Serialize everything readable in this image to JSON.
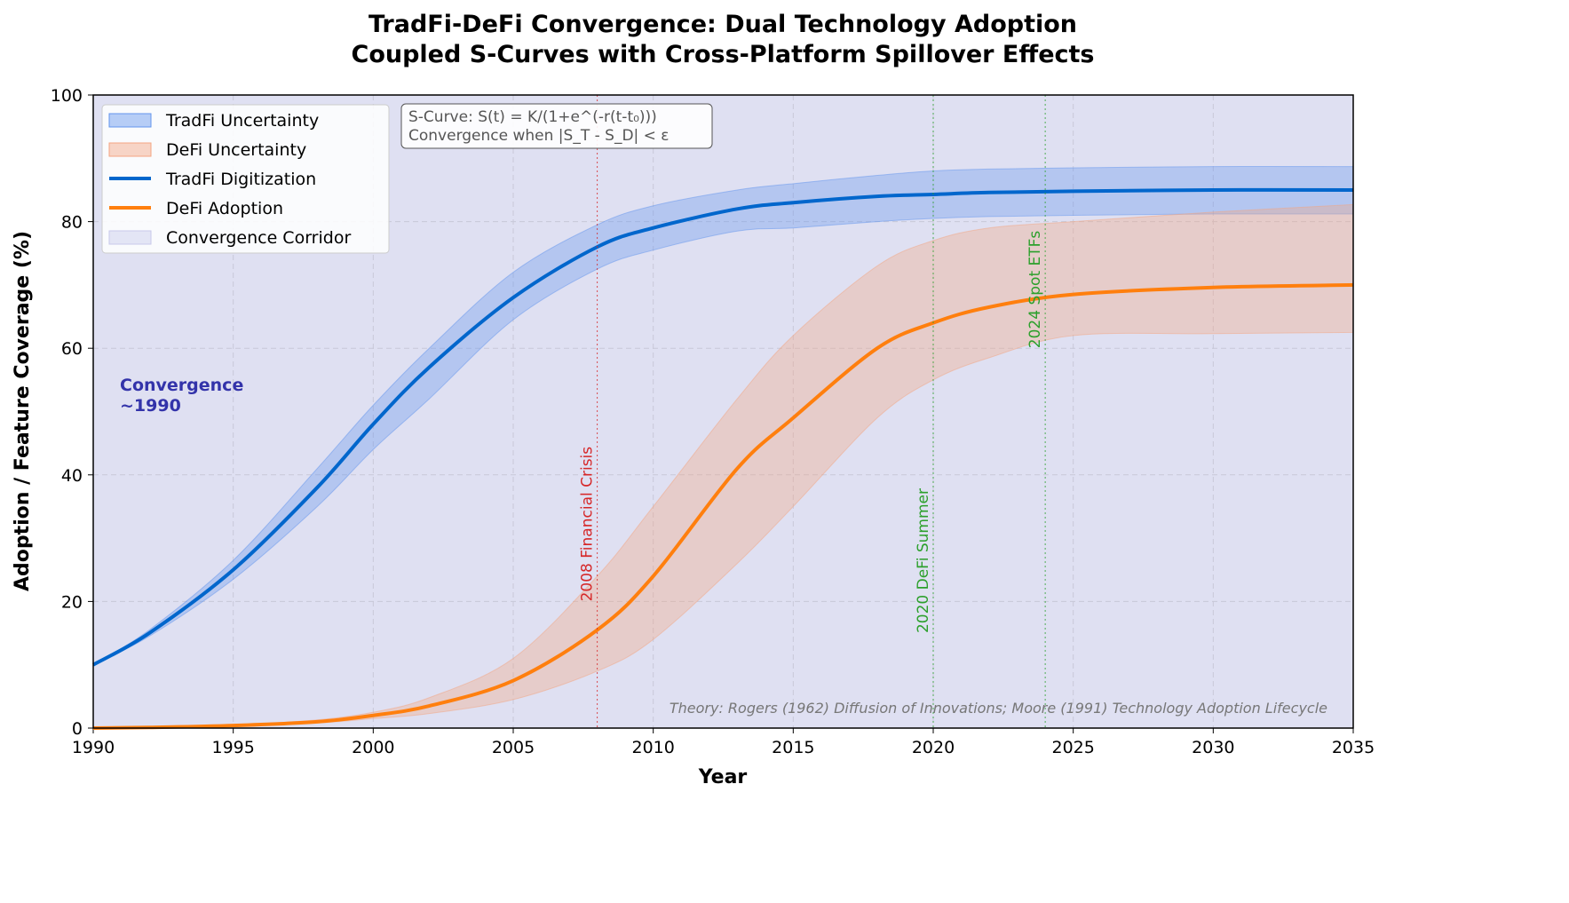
{
  "chart_data": {
    "type": "line",
    "title": "TradFi-DeFi Convergence: Dual Technology Adoption",
    "subtitle": "Coupled S-Curves with Cross-Platform Spillover Effects",
    "xlabel": "Year",
    "ylabel": "Adoption / Feature Coverage (%)",
    "xlim": [
      1990,
      2035
    ],
    "ylim": [
      0,
      100
    ],
    "xticks": [
      1990,
      1995,
      2000,
      2005,
      2010,
      2015,
      2020,
      2025,
      2030,
      2035
    ],
    "yticks": [
      0,
      20,
      40,
      60,
      80,
      100
    ],
    "grid": true,
    "legend_position": "top-left",
    "x": [
      1990,
      1992,
      1995,
      1998,
      2000,
      2002,
      2005,
      2008,
      2010,
      2013,
      2015,
      2018,
      2020,
      2022,
      2025,
      2030,
      2035
    ],
    "series": [
      {
        "name": "TradFi Digitization",
        "color": "#0066cc",
        "values": [
          10,
          15,
          25,
          38,
          48,
          57,
          68,
          76,
          79,
          82,
          83,
          84,
          84.3,
          84.6,
          84.8,
          85,
          85
        ],
        "upper": [
          10,
          15.5,
          26.5,
          41,
          51,
          60,
          72,
          79.5,
          82.5,
          85,
          86,
          87.3,
          88,
          88.3,
          88.5,
          88.7,
          88.7
        ],
        "lower": [
          10,
          14.5,
          23.5,
          35,
          44,
          52,
          64.5,
          72.5,
          75.5,
          78.5,
          79,
          80,
          80.5,
          80.8,
          81,
          81.2,
          81.2
        ]
      },
      {
        "name": "DeFi Adoption",
        "color": "#ff7f0e",
        "values": [
          0,
          0.1,
          0.4,
          1,
          2,
          3.5,
          7.5,
          15.5,
          24,
          41,
          49,
          60,
          64,
          66.5,
          68.5,
          69.6,
          70
        ],
        "upper": [
          0,
          0.15,
          0.5,
          1.3,
          2.5,
          4.8,
          11,
          24,
          35,
          52,
          62,
          73,
          77,
          79,
          80,
          81.5,
          82.7
        ],
        "lower": [
          0,
          0.05,
          0.3,
          0.8,
          1.5,
          2.3,
          4.5,
          9,
          14,
          26,
          35,
          49,
          55,
          58.5,
          62,
          62.3,
          62.5
        ]
      }
    ],
    "bands": [
      {
        "name": "TradFi Uncertainty",
        "color": "#6495ed"
      },
      {
        "name": "DeFi Uncertainty",
        "color": "#f4a582"
      }
    ],
    "corridor": {
      "name": "Convergence Corridor",
      "color": "#dfe0f2",
      "from": 0,
      "to": 100
    },
    "events": [
      {
        "year": 2008,
        "label": "2008 Financial Crisis",
        "color": "#d62728",
        "label_y": 20
      },
      {
        "year": 2020,
        "label": "2020 DeFi Summer",
        "color": "#2ca02c",
        "label_y": 15
      },
      {
        "year": 2024,
        "label": "2024 Spot ETFs",
        "color": "#2ca02c",
        "label_y": 60
      }
    ],
    "annotation": {
      "line1": "Convergence",
      "line2": "~1990",
      "color": "#3333aa"
    },
    "formula_box": [
      "S-Curve: S(t) = K/(1+e^(-r(t-t₀)))",
      "Convergence when |S_T - S_D| < ε"
    ],
    "footnote": "Theory: Rogers (1962) Diffusion of Innovations; Moore (1991) Technology Adoption Lifecycle"
  }
}
